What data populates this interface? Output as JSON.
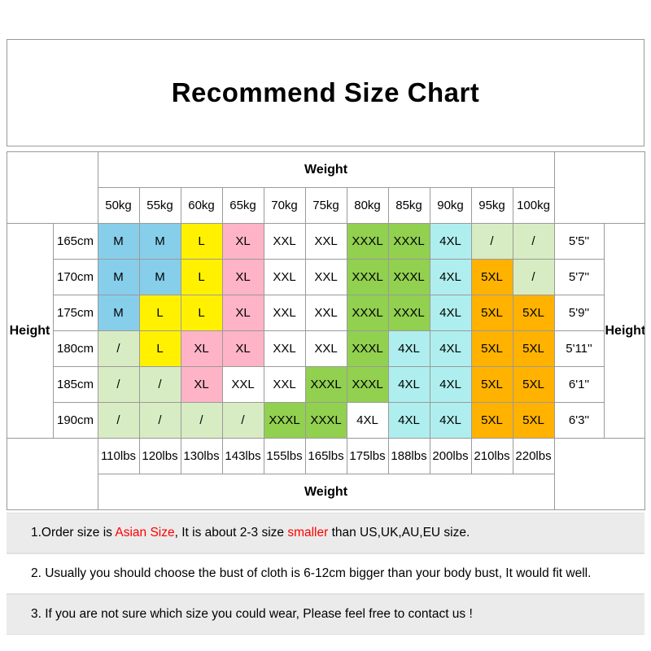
{
  "title": "Recommend Size Chart",
  "table": {
    "weight_label": "Weight",
    "height_label": "Height",
    "kg": [
      "50kg",
      "55kg",
      "60kg",
      "65kg",
      "70kg",
      "75kg",
      "80kg",
      "85kg",
      "90kg",
      "95kg",
      "100kg"
    ],
    "lbs": [
      "110lbs",
      "120lbs",
      "130lbs",
      "143lbs",
      "155lbs",
      "165lbs",
      "175lbs",
      "188lbs",
      "200lbs",
      "210lbs",
      "220lbs"
    ],
    "colors": {
      "blue": "#87CEEB",
      "yellow": "#FFF100",
      "pink": "#FFB3C7",
      "white": "#FFFFFF",
      "green": "#92D050",
      "cyan": "#AFEEEE",
      "orange": "#FFB200",
      "pale": "#D8ECC3"
    },
    "rows": [
      {
        "cm": "165cm",
        "ft": "5'5''",
        "cells": [
          {
            "t": "M",
            "c": "blue"
          },
          {
            "t": "M",
            "c": "blue"
          },
          {
            "t": "L",
            "c": "yellow"
          },
          {
            "t": "XL",
            "c": "pink"
          },
          {
            "t": "XXL",
            "c": "white"
          },
          {
            "t": "XXL",
            "c": "white"
          },
          {
            "t": "XXXL",
            "c": "green"
          },
          {
            "t": "XXXL",
            "c": "green"
          },
          {
            "t": "4XL",
            "c": "cyan"
          },
          {
            "t": "/",
            "c": "pale"
          },
          {
            "t": "/",
            "c": "pale"
          }
        ]
      },
      {
        "cm": "170cm",
        "ft": "5'7''",
        "cells": [
          {
            "t": "M",
            "c": "blue"
          },
          {
            "t": "M",
            "c": "blue"
          },
          {
            "t": "L",
            "c": "yellow"
          },
          {
            "t": "XL",
            "c": "pink"
          },
          {
            "t": "XXL",
            "c": "white"
          },
          {
            "t": "XXL",
            "c": "white"
          },
          {
            "t": "XXXL",
            "c": "green"
          },
          {
            "t": "XXXL",
            "c": "green"
          },
          {
            "t": "4XL",
            "c": "cyan"
          },
          {
            "t": "5XL",
            "c": "orange"
          },
          {
            "t": "/",
            "c": "pale"
          }
        ]
      },
      {
        "cm": "175cm",
        "ft": "5'9''",
        "cells": [
          {
            "t": "M",
            "c": "blue"
          },
          {
            "t": "L",
            "c": "yellow"
          },
          {
            "t": "L",
            "c": "yellow"
          },
          {
            "t": "XL",
            "c": "pink"
          },
          {
            "t": "XXL",
            "c": "white"
          },
          {
            "t": "XXL",
            "c": "white"
          },
          {
            "t": "XXXL",
            "c": "green"
          },
          {
            "t": "XXXL",
            "c": "green"
          },
          {
            "t": "4XL",
            "c": "cyan"
          },
          {
            "t": "5XL",
            "c": "orange"
          },
          {
            "t": "5XL",
            "c": "orange"
          }
        ]
      },
      {
        "cm": "180cm",
        "ft": "5'11''",
        "cells": [
          {
            "t": "/",
            "c": "pale"
          },
          {
            "t": "L",
            "c": "yellow"
          },
          {
            "t": "XL",
            "c": "pink"
          },
          {
            "t": "XL",
            "c": "pink"
          },
          {
            "t": "XXL",
            "c": "white"
          },
          {
            "t": "XXL",
            "c": "white"
          },
          {
            "t": "XXXL",
            "c": "green"
          },
          {
            "t": "4XL",
            "c": "cyan"
          },
          {
            "t": "4XL",
            "c": "cyan"
          },
          {
            "t": "5XL",
            "c": "orange"
          },
          {
            "t": "5XL",
            "c": "orange"
          }
        ]
      },
      {
        "cm": "185cm",
        "ft": "6'1''",
        "cells": [
          {
            "t": "/",
            "c": "pale"
          },
          {
            "t": "/",
            "c": "pale"
          },
          {
            "t": "XL",
            "c": "pink"
          },
          {
            "t": "XXL",
            "c": "white"
          },
          {
            "t": "XXL",
            "c": "white"
          },
          {
            "t": "XXXL",
            "c": "green"
          },
          {
            "t": "XXXL",
            "c": "green"
          },
          {
            "t": "4XL",
            "c": "cyan"
          },
          {
            "t": "4XL",
            "c": "cyan"
          },
          {
            "t": "5XL",
            "c": "orange"
          },
          {
            "t": "5XL",
            "c": "orange"
          }
        ]
      },
      {
        "cm": "190cm",
        "ft": "6'3''",
        "cells": [
          {
            "t": "/",
            "c": "pale"
          },
          {
            "t": "/",
            "c": "pale"
          },
          {
            "t": "/",
            "c": "pale"
          },
          {
            "t": "/",
            "c": "pale"
          },
          {
            "t": "XXXL",
            "c": "green"
          },
          {
            "t": "XXXL",
            "c": "green"
          },
          {
            "t": "4XL",
            "c": "white"
          },
          {
            "t": "4XL",
            "c": "cyan"
          },
          {
            "t": "4XL",
            "c": "cyan"
          },
          {
            "t": "5XL",
            "c": "orange"
          },
          {
            "t": "5XL",
            "c": "orange"
          }
        ]
      }
    ]
  },
  "notes": [
    {
      "bg": "gray",
      "parts": [
        {
          "text": "1.Order size is "
        },
        {
          "text": "Asian Size",
          "red": true
        },
        {
          "text": ", It is about 2-3 size "
        },
        {
          "text": "smaller",
          "red": true
        },
        {
          "text": " than US,UK,AU,EU size."
        }
      ]
    },
    {
      "bg": "white",
      "parts": [
        {
          "text": "2. Usually you should choose the bust of cloth is 6-12cm bigger than your body bust, It would fit well."
        }
      ]
    },
    {
      "bg": "gray",
      "parts": [
        {
          "text": "3. If you are not sure which size you could wear, Please feel free to contact us !"
        }
      ]
    }
  ],
  "chart_data": {
    "type": "table",
    "title": "Recommend Size Chart",
    "columns_weight_kg": [
      50,
      55,
      60,
      65,
      70,
      75,
      80,
      85,
      90,
      95,
      100
    ],
    "columns_weight_lbs": [
      110,
      120,
      130,
      143,
      155,
      165,
      175,
      188,
      200,
      210,
      220
    ],
    "rows_height_cm": [
      165,
      170,
      175,
      180,
      185,
      190
    ],
    "rows_height_ft": [
      "5'5''",
      "5'7''",
      "5'9''",
      "5'11''",
      "6'1''",
      "6'3''"
    ],
    "matrix": [
      [
        "M",
        "M",
        "L",
        "XL",
        "XXL",
        "XXL",
        "XXXL",
        "XXXL",
        "4XL",
        "/",
        "/"
      ],
      [
        "M",
        "M",
        "L",
        "XL",
        "XXL",
        "XXL",
        "XXXL",
        "XXXL",
        "4XL",
        "5XL",
        "/"
      ],
      [
        "M",
        "L",
        "L",
        "XL",
        "XXL",
        "XXL",
        "XXXL",
        "XXXL",
        "4XL",
        "5XL",
        "5XL"
      ],
      [
        "/",
        "L",
        "XL",
        "XL",
        "XXL",
        "XXL",
        "XXXL",
        "4XL",
        "4XL",
        "5XL",
        "5XL"
      ],
      [
        "/",
        "/",
        "XL",
        "XXL",
        "XXL",
        "XXXL",
        "XXXL",
        "4XL",
        "4XL",
        "5XL",
        "5XL"
      ],
      [
        "/",
        "/",
        "/",
        "/",
        "XXXL",
        "XXXL",
        "4XL",
        "4XL",
        "4XL",
        "5XL",
        "5XL"
      ]
    ]
  }
}
